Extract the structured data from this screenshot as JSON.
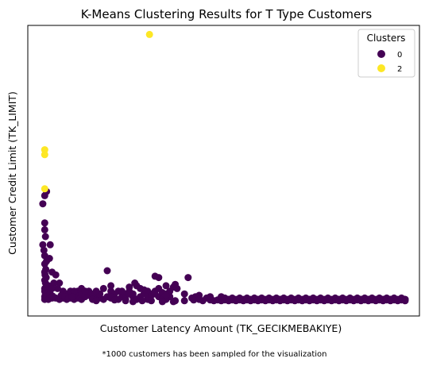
{
  "chart_data": {
    "type": "scatter",
    "title": "K-Means Clustering Results for T Type Customers",
    "xlabel": "Customer Latency Amount (TK_GECIKMEBAKIYE)",
    "ylabel": "Customer Credit Limit (TK_LIMIT)",
    "footnote": "*1000 customers has been sampled for the visualization",
    "xticks": "hidden",
    "yticks": "hidden",
    "grid": false,
    "xlim": [
      0,
      100
    ],
    "ylim": [
      0,
      100
    ],
    "legend": {
      "title": "Clusters",
      "placement": "top-right"
    },
    "series": [
      {
        "name": "0",
        "color": "#440154",
        "points": [
          [
            2,
            40
          ],
          [
            2.5,
            41.5
          ],
          [
            1.5,
            37
          ],
          [
            2,
            30
          ],
          [
            2,
            27.5
          ],
          [
            2.2,
            25
          ],
          [
            1.5,
            22
          ],
          [
            1.8,
            20
          ],
          [
            2,
            18
          ],
          [
            2.5,
            16
          ],
          [
            2,
            15
          ],
          [
            2.3,
            13
          ],
          [
            2,
            12
          ],
          [
            2.1,
            11
          ],
          [
            2.4,
            10
          ],
          [
            2,
            9
          ],
          [
            2.2,
            8
          ],
          [
            2.5,
            7
          ],
          [
            2,
            6
          ],
          [
            2.6,
            5.5
          ],
          [
            2,
            5
          ],
          [
            2.8,
            4.5
          ],
          [
            2.2,
            4
          ],
          [
            3,
            3.5
          ],
          [
            2,
            3
          ],
          [
            3.5,
            3
          ],
          [
            2.5,
            2.5
          ],
          [
            4,
            2.5
          ],
          [
            5,
            2.5
          ],
          [
            2,
            2
          ],
          [
            3,
            2
          ],
          [
            6,
            2
          ],
          [
            7,
            2.5
          ],
          [
            8,
            2
          ],
          [
            9,
            2.5
          ],
          [
            10,
            2
          ],
          [
            11,
            2.5
          ],
          [
            12,
            2
          ],
          [
            3.5,
            22
          ],
          [
            3.3,
            17
          ],
          [
            4,
            12
          ],
          [
            5,
            11
          ],
          [
            6,
            8
          ],
          [
            4.5,
            8
          ],
          [
            5.5,
            6
          ],
          [
            7,
            5
          ],
          [
            8,
            4
          ],
          [
            9,
            5
          ],
          [
            10,
            3.5
          ],
          [
            11,
            5
          ],
          [
            12,
            4
          ],
          [
            13,
            3
          ],
          [
            14,
            3.5
          ],
          [
            15,
            2.5
          ],
          [
            16,
            3
          ],
          [
            17,
            2.5
          ],
          [
            18,
            2
          ],
          [
            19,
            3
          ],
          [
            20,
            2.5
          ],
          [
            21,
            4
          ],
          [
            22,
            5
          ],
          [
            23,
            3
          ],
          [
            24,
            4
          ],
          [
            25,
            5
          ],
          [
            26,
            3
          ],
          [
            27,
            2
          ],
          [
            28,
            3
          ],
          [
            29,
            4
          ],
          [
            30,
            2
          ],
          [
            31,
            4
          ],
          [
            32,
            5
          ],
          [
            33,
            3
          ],
          [
            34,
            2
          ],
          [
            35,
            4
          ],
          [
            36,
            3
          ],
          [
            15,
            4
          ],
          [
            17,
            4
          ],
          [
            12,
            6
          ],
          [
            14,
            5
          ],
          [
            16,
            5
          ],
          [
            20,
            5
          ],
          [
            18,
            6
          ],
          [
            15,
            2
          ],
          [
            10,
            5
          ],
          [
            13,
            5
          ],
          [
            19,
            12.5
          ],
          [
            23,
            5
          ],
          [
            28,
            6
          ],
          [
            30,
            5
          ],
          [
            25,
            6.5
          ],
          [
            37,
            6.5
          ],
          [
            38,
            6
          ],
          [
            35,
            7
          ],
          [
            35,
            2
          ],
          [
            37.5,
            1.5
          ],
          [
            33,
            6
          ],
          [
            34,
            4.5
          ],
          [
            30,
            3
          ],
          [
            20,
            3
          ],
          [
            26,
            4
          ],
          [
            22,
            2
          ],
          [
            24,
            2
          ],
          [
            40,
            4
          ],
          [
            43,
            3
          ],
          [
            44,
            3.5
          ],
          [
            31,
            3.5
          ],
          [
            27,
            7
          ],
          [
            29,
            5.5
          ],
          [
            32,
            4
          ],
          [
            20,
            7
          ],
          [
            25,
            4
          ],
          [
            36,
            5
          ],
          [
            3,
            7
          ],
          [
            4,
            6
          ],
          [
            3.5,
            4
          ],
          [
            4.2,
            3.2
          ],
          [
            6.5,
            3.5
          ],
          [
            7.5,
            3
          ],
          [
            8.5,
            2.5
          ],
          [
            9.5,
            3
          ],
          [
            16,
            1.5
          ],
          [
            21,
            1.8
          ],
          [
            24,
            1.5
          ],
          [
            26,
            1.2
          ],
          [
            28.5,
            1.5
          ],
          [
            42,
            2.5
          ],
          [
            47,
            3
          ],
          [
            46,
            2.5
          ],
          [
            37.5,
            7.5
          ],
          [
            33,
            10
          ],
          [
            32,
            10.5
          ],
          [
            26.5,
            8
          ],
          [
            41,
            10
          ],
          [
            35,
            3.5
          ],
          [
            31,
            1.5
          ],
          [
            34,
            1.2
          ],
          [
            37,
            1.2
          ],
          [
            40,
            1.5
          ],
          [
            42.5,
            1.8
          ],
          [
            44,
            2
          ],
          [
            45,
            1.5
          ],
          [
            47,
            1.8
          ],
          [
            48,
            1.5
          ],
          [
            49,
            1.8
          ],
          [
            50,
            1.5
          ],
          [
            51,
            1.8
          ],
          [
            52,
            1.5
          ],
          [
            53,
            1.8
          ],
          [
            54,
            1.5
          ],
          [
            55,
            1.8
          ],
          [
            56,
            1.5
          ],
          [
            57,
            1.8
          ],
          [
            58,
            1.5
          ],
          [
            59,
            1.8
          ],
          [
            60,
            1.5
          ],
          [
            61,
            1.8
          ],
          [
            62,
            1.5
          ],
          [
            63,
            1.8
          ],
          [
            64,
            1.5
          ],
          [
            65,
            1.8
          ],
          [
            66,
            1.5
          ],
          [
            67,
            1.8
          ],
          [
            68,
            1.5
          ],
          [
            69,
            1.8
          ],
          [
            70,
            1.5
          ],
          [
            71,
            1.8
          ],
          [
            72,
            1.5
          ],
          [
            73,
            1.8
          ],
          [
            74,
            1.5
          ],
          [
            75,
            1.8
          ],
          [
            76,
            1.5
          ],
          [
            77,
            1.8
          ],
          [
            78,
            1.5
          ],
          [
            79,
            1.8
          ],
          [
            80,
            1.5
          ],
          [
            81,
            1.8
          ],
          [
            82,
            1.5
          ],
          [
            83,
            1.8
          ],
          [
            84,
            1.5
          ],
          [
            85,
            1.8
          ],
          [
            86,
            1.5
          ],
          [
            87,
            1.8
          ],
          [
            88,
            1.5
          ],
          [
            89,
            1.8
          ],
          [
            90,
            1.5
          ],
          [
            91,
            1.8
          ],
          [
            92,
            1.5
          ],
          [
            93,
            1.8
          ],
          [
            94,
            1.5
          ],
          [
            95,
            1.8
          ],
          [
            96,
            1.5
          ],
          [
            97,
            1.8
          ],
          [
            98,
            1.5
          ],
          [
            99,
            1.8
          ],
          [
            52,
            2
          ],
          [
            60,
            2
          ],
          [
            66,
            2
          ],
          [
            74,
            2
          ],
          [
            82,
            2
          ],
          [
            90,
            2
          ],
          [
            96,
            2
          ],
          [
            99,
            2
          ],
          [
            63,
            2
          ],
          [
            71,
            2
          ],
          [
            88,
            2
          ],
          [
            94,
            2
          ],
          [
            100,
            2
          ],
          [
            100,
            1.5
          ],
          [
            50,
            3
          ],
          [
            51,
            2.5
          ],
          [
            52,
            2
          ],
          [
            53,
            2.5
          ],
          [
            54,
            2
          ],
          [
            55,
            2.5
          ],
          [
            56,
            2
          ],
          [
            57,
            2.5
          ],
          [
            58,
            2
          ],
          [
            59,
            2.5
          ],
          [
            60,
            2
          ],
          [
            61,
            2.5
          ],
          [
            62,
            2
          ],
          [
            63,
            2.5
          ],
          [
            64,
            2
          ],
          [
            65,
            2.5
          ],
          [
            66,
            2
          ],
          [
            67,
            2.5
          ],
          [
            68,
            2
          ],
          [
            69,
            2.5
          ],
          [
            70,
            2
          ],
          [
            71,
            2.5
          ],
          [
            72,
            2
          ],
          [
            73,
            2.5
          ],
          [
            74,
            2
          ],
          [
            75,
            2.5
          ],
          [
            76,
            2
          ],
          [
            77,
            2.5
          ],
          [
            78,
            2
          ],
          [
            79,
            2.5
          ],
          [
            80,
            2
          ],
          [
            81,
            2.5
          ],
          [
            82,
            2
          ],
          [
            83,
            2.5
          ],
          [
            84,
            2
          ],
          [
            85,
            2.5
          ],
          [
            86,
            2
          ],
          [
            87,
            2.5
          ],
          [
            88,
            2
          ],
          [
            89,
            2.5
          ],
          [
            90,
            2
          ],
          [
            91,
            2.5
          ],
          [
            92,
            2
          ],
          [
            93,
            2.5
          ],
          [
            94,
            2
          ],
          [
            95,
            2.5
          ],
          [
            96,
            2
          ],
          [
            97,
            2.5
          ],
          [
            98,
            2
          ],
          [
            99,
            2.5
          ],
          [
            100,
            2
          ]
        ]
      },
      {
        "name": "2",
        "color": "#fde725",
        "points": [
          [
            30.5,
            99
          ],
          [
            2,
            55
          ],
          [
            2,
            56.8
          ],
          [
            2,
            42.5
          ]
        ]
      }
    ]
  }
}
